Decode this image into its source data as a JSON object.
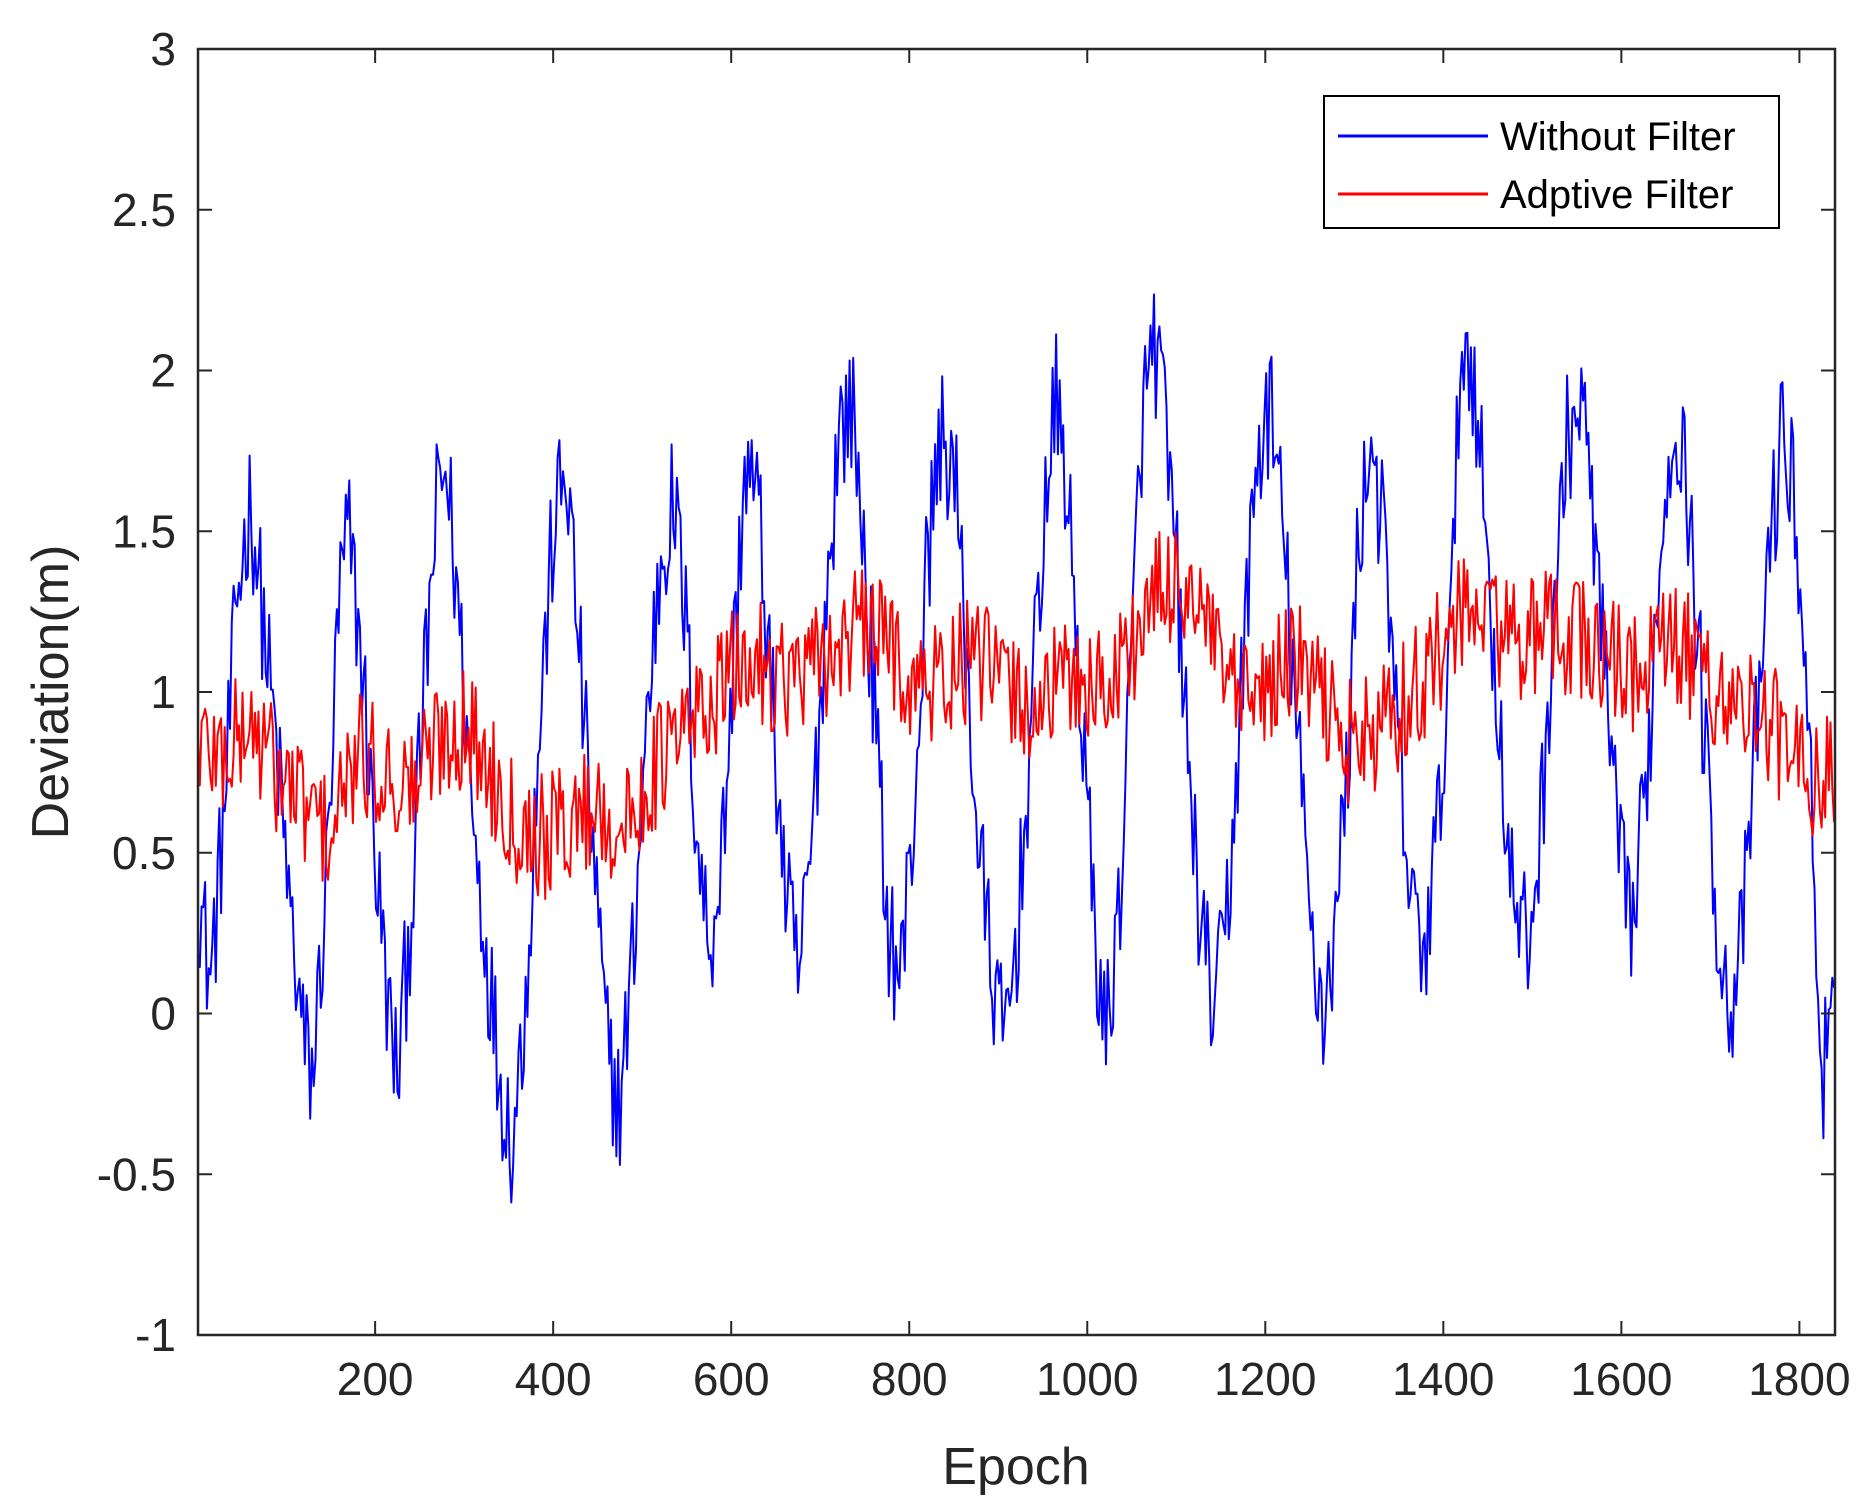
{
  "chart_data": {
    "type": "line",
    "title": "",
    "xlabel": "Epoch",
    "ylabel": "Deviation(m)",
    "xlim": [
      1,
      1840
    ],
    "ylim": [
      -1,
      3
    ],
    "xticks": [
      200,
      400,
      600,
      800,
      1000,
      1200,
      1400,
      1600,
      1800
    ],
    "yticks": [
      -1,
      -0.5,
      0,
      0.5,
      1,
      1.5,
      2,
      2.5,
      3
    ],
    "ytick_labels": [
      "-1",
      "-0.5",
      "0",
      "0.5",
      "1",
      "1.5",
      "2",
      "2.5",
      "3"
    ],
    "grid": false,
    "legend_position": "top-right",
    "series": [
      {
        "name": "Without Filter",
        "color": "#0000FF",
        "x": [
          1,
          15,
          30,
          45,
          60,
          75,
          90,
          105,
          120,
          130,
          145,
          160,
          170,
          185,
          200,
          215,
          225,
          240,
          255,
          270,
          280,
          295,
          310,
          325,
          340,
          355,
          370,
          385,
          400,
          415,
          430,
          445,
          460,
          475,
          490,
          505,
          520,
          535,
          550,
          560,
          575,
          590,
          605,
          615,
          630,
          645,
          660,
          675,
          690,
          705,
          720,
          735,
          745,
          760,
          775,
          790,
          805,
          820,
          835,
          850,
          865,
          875,
          890,
          905,
          920,
          935,
          950,
          965,
          975,
          990,
          1005,
          1020,
          1035,
          1050,
          1060,
          1075,
          1085,
          1100,
          1115,
          1130,
          1145,
          1160,
          1175,
          1190,
          1205,
          1220,
          1235,
          1250,
          1265,
          1280,
          1295,
          1305,
          1320,
          1335,
          1350,
          1365,
          1380,
          1395,
          1410,
          1420,
          1435,
          1450,
          1465,
          1480,
          1495,
          1510,
          1525,
          1540,
          1555,
          1570,
          1585,
          1600,
          1615,
          1630,
          1645,
          1660,
          1675,
          1690,
          1705,
          1720,
          1735,
          1750,
          1765,
          1780,
          1795,
          1810,
          1825,
          1840
        ],
        "y": [
          0.4,
          0.1,
          0.6,
          1.3,
          1.6,
          1.2,
          0.8,
          0.3,
          -0.1,
          -0.2,
          0.4,
          1.3,
          1.5,
          1.1,
          0.5,
          0.0,
          -0.2,
          0.3,
          1.0,
          1.6,
          1.7,
          1.2,
          0.6,
          0.2,
          -0.2,
          -0.4,
          0.1,
          0.9,
          1.5,
          1.7,
          1.1,
          0.5,
          -0.1,
          -0.3,
          0.2,
          0.9,
          1.4,
          1.6,
          1.2,
          0.6,
          0.2,
          0.5,
          1.2,
          1.7,
          1.6,
          1.0,
          0.4,
          0.1,
          0.5,
          1.2,
          1.8,
          1.9,
          1.6,
          1.0,
          0.3,
          0.1,
          0.6,
          1.4,
          1.8,
          1.7,
          1.1,
          0.6,
          0.2,
          -0.1,
          0.2,
          0.8,
          1.5,
          1.9,
          1.7,
          1.1,
          0.4,
          -0.1,
          0.3,
          1.1,
          1.8,
          2.1,
          1.9,
          1.4,
          0.7,
          0.2,
          0.0,
          0.4,
          1.1,
          1.7,
          1.9,
          1.5,
          0.9,
          0.3,
          0.0,
          0.3,
          0.9,
          1.5,
          1.8,
          1.4,
          0.8,
          0.3,
          0.2,
          0.6,
          1.3,
          2.1,
          2.0,
          1.4,
          0.8,
          0.3,
          0.2,
          0.6,
          1.3,
          1.8,
          1.9,
          1.5,
          0.9,
          0.4,
          0.3,
          0.8,
          1.5,
          1.9,
          1.6,
          1.0,
          0.4,
          0.0,
          0.2,
          0.8,
          1.4,
          1.8,
          1.6,
          0.9,
          -0.2,
          0.0
        ]
      },
      {
        "name": "Adptive Filter",
        "color": "#FF0000",
        "x": [
          1,
          30,
          60,
          90,
          120,
          150,
          180,
          210,
          240,
          270,
          300,
          330,
          360,
          390,
          420,
          450,
          480,
          510,
          540,
          570,
          600,
          630,
          660,
          690,
          720,
          750,
          780,
          810,
          840,
          870,
          900,
          930,
          960,
          990,
          1020,
          1050,
          1080,
          1110,
          1140,
          1170,
          1200,
          1230,
          1260,
          1290,
          1320,
          1350,
          1380,
          1410,
          1440,
          1470,
          1500,
          1530,
          1560,
          1590,
          1620,
          1650,
          1680,
          1710,
          1740,
          1770,
          1800,
          1840
        ],
        "y": [
          0.85,
          0.8,
          0.9,
          0.75,
          0.65,
          0.55,
          0.8,
          0.75,
          0.7,
          0.85,
          0.9,
          0.75,
          0.6,
          0.55,
          0.6,
          0.65,
          0.55,
          0.75,
          0.85,
          0.95,
          1.05,
          1.1,
          1.05,
          1.05,
          1.15,
          1.2,
          1.15,
          1.0,
          1.05,
          1.1,
          1.05,
          0.95,
          1.0,
          1.05,
          1.0,
          1.15,
          1.3,
          1.35,
          1.15,
          0.95,
          1.0,
          1.1,
          1.0,
          0.85,
          0.85,
          0.95,
          1.05,
          1.2,
          1.25,
          1.2,
          1.15,
          1.2,
          1.15,
          1.1,
          1.05,
          1.15,
          1.1,
          1.0,
          0.95,
          0.9,
          0.75,
          0.75
        ]
      }
    ]
  }
}
